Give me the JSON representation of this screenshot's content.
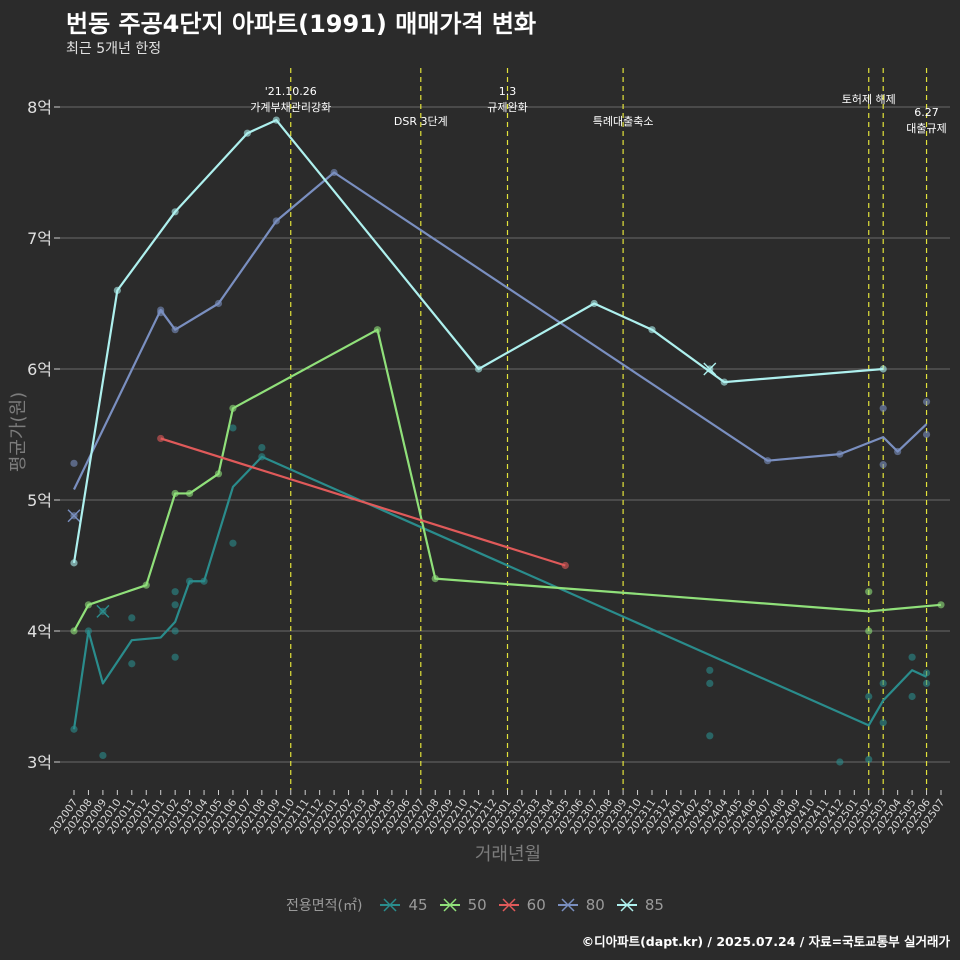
{
  "header": {
    "title": "번동 주공4단지 아파트(1991) 매매가격 변화",
    "subtitle": "최근 5개년 한정",
    "caption": "©디아파트(dapt.kr) / 2025.07.24 / 자료=국토교통부 실거래가"
  },
  "legend": {
    "title": "전용면적(㎡)",
    "items": [
      {
        "label": "45",
        "color": "#2a8c8c"
      },
      {
        "label": "50",
        "color": "#90e07a"
      },
      {
        "label": "60",
        "color": "#e05a5a"
      },
      {
        "label": "80",
        "color": "#7a8fc0"
      },
      {
        "label": "85",
        "color": "#aef0ee"
      }
    ]
  },
  "chart_data": {
    "type": "line",
    "title": "번동 주공4단지 아파트(1991) 매매가격 변화",
    "subtitle": "최근 5개년 한정",
    "xlabel": "거래년월",
    "ylabel": "평균가(원)",
    "ylim": [
      2.8,
      8.3
    ],
    "y_ticks": [
      3,
      4,
      5,
      6,
      7,
      8
    ],
    "y_tick_labels": [
      "3억",
      "4억",
      "5억",
      "6억",
      "7억",
      "8억"
    ],
    "categories": [
      "202007",
      "202008",
      "202009",
      "202010",
      "202011",
      "202012",
      "202101",
      "202102",
      "202103",
      "202104",
      "202105",
      "202106",
      "202107",
      "202108",
      "202109",
      "202110",
      "202111",
      "202112",
      "202201",
      "202202",
      "202203",
      "202204",
      "202205",
      "202206",
      "202207",
      "202208",
      "202209",
      "202210",
      "202211",
      "202212",
      "202301",
      "202302",
      "202303",
      "202304",
      "202305",
      "202306",
      "202307",
      "202308",
      "202309",
      "202310",
      "202311",
      "202312",
      "202401",
      "202402",
      "202403",
      "202404",
      "202405",
      "202406",
      "202407",
      "202408",
      "202409",
      "202410",
      "202411",
      "202412",
      "202501",
      "202502",
      "202503",
      "202504",
      "202505",
      "202506",
      "202507"
    ],
    "grid": true,
    "legend_position": "bottom",
    "series": [
      {
        "name": "45",
        "color": "#2a8c8c",
        "line": [
          [
            "202007",
            3.25
          ],
          [
            "202008",
            4.0
          ],
          [
            "202009",
            3.6
          ],
          [
            "202011",
            3.93
          ],
          [
            "202101",
            3.95
          ],
          [
            "202102",
            4.07
          ],
          [
            "202103",
            4.38
          ],
          [
            "202104",
            4.38
          ],
          [
            "202106",
            5.1
          ],
          [
            "202108",
            5.33
          ],
          [
            "202502",
            3.28
          ],
          [
            "202503",
            3.47
          ],
          [
            "202505",
            3.7
          ],
          [
            "202506",
            3.65
          ]
        ],
        "points": [
          [
            "202007",
            3.25
          ],
          [
            "202008",
            4.0
          ],
          [
            "202009",
            3.05
          ],
          [
            "202011",
            4.1
          ],
          [
            "202011",
            3.75
          ],
          [
            "202102",
            4.3
          ],
          [
            "202102",
            4.2
          ],
          [
            "202102",
            4.0
          ],
          [
            "202102",
            3.8
          ],
          [
            "202103",
            4.38
          ],
          [
            "202104",
            4.38
          ],
          [
            "202106",
            5.55
          ],
          [
            "202106",
            4.67
          ],
          [
            "202108",
            5.4
          ],
          [
            "202108",
            5.33
          ],
          [
            "202403",
            3.7
          ],
          [
            "202403",
            3.6
          ],
          [
            "202403",
            3.2
          ],
          [
            "202412",
            3.0
          ],
          [
            "202502",
            3.5
          ],
          [
            "202502",
            3.02
          ],
          [
            "202503",
            3.6
          ],
          [
            "202503",
            3.3
          ],
          [
            "202505",
            3.8
          ],
          [
            "202505",
            3.5
          ],
          [
            "202506",
            3.68
          ],
          [
            "202506",
            3.6
          ]
        ],
        "cancelled": [
          [
            "202009",
            4.15
          ]
        ]
      },
      {
        "name": "50",
        "color": "#90e07a",
        "line": [
          [
            "202007",
            4.0
          ],
          [
            "202008",
            4.2
          ],
          [
            "202012",
            4.35
          ],
          [
            "202102",
            5.05
          ],
          [
            "202103",
            5.05
          ],
          [
            "202105",
            5.2
          ],
          [
            "202106",
            5.7
          ],
          [
            "202204",
            6.3
          ],
          [
            "202208",
            4.4
          ],
          [
            "202502",
            4.15
          ],
          [
            "202507",
            4.2
          ]
        ],
        "points": [
          [
            "202007",
            4.0
          ],
          [
            "202008",
            4.2
          ],
          [
            "202012",
            4.35
          ],
          [
            "202102",
            5.05
          ],
          [
            "202103",
            5.05
          ],
          [
            "202105",
            5.2
          ],
          [
            "202106",
            5.7
          ],
          [
            "202204",
            6.3
          ],
          [
            "202208",
            4.4
          ],
          [
            "202502",
            4.3
          ],
          [
            "202502",
            4.0
          ],
          [
            "202507",
            4.2
          ]
        ],
        "cancelled": []
      },
      {
        "name": "60",
        "color": "#e05a5a",
        "line": [
          [
            "202101",
            5.47
          ],
          [
            "202305",
            4.5
          ]
        ],
        "points": [
          [
            "202101",
            5.47
          ],
          [
            "202305",
            4.5
          ]
        ],
        "cancelled": []
      },
      {
        "name": "80",
        "color": "#7a8fc0",
        "line": [
          [
            "202007",
            5.08
          ],
          [
            "202101",
            6.45
          ],
          [
            "202102",
            6.3
          ],
          [
            "202105",
            6.5
          ],
          [
            "202109",
            7.13
          ],
          [
            "202201",
            7.5
          ],
          [
            "202407",
            5.3
          ],
          [
            "202412",
            5.35
          ],
          [
            "202503",
            5.48
          ],
          [
            "202504",
            5.37
          ],
          [
            "202506",
            5.58
          ]
        ],
        "points": [
          [
            "202007",
            5.28
          ],
          [
            "202101",
            6.45
          ],
          [
            "202101",
            6.43
          ],
          [
            "202102",
            6.3
          ],
          [
            "202105",
            6.5
          ],
          [
            "202109",
            7.13
          ],
          [
            "202201",
            7.5
          ],
          [
            "202407",
            5.3
          ],
          [
            "202412",
            5.35
          ],
          [
            "202503",
            5.7
          ],
          [
            "202503",
            5.27
          ],
          [
            "202504",
            5.37
          ],
          [
            "202506",
            5.75
          ],
          [
            "202506",
            5.5
          ]
        ],
        "cancelled": [
          [
            "202007",
            4.88
          ]
        ]
      },
      {
        "name": "85",
        "color": "#aef0ee",
        "line": [
          [
            "202007",
            4.52
          ],
          [
            "202010",
            6.6
          ],
          [
            "202102",
            7.2
          ],
          [
            "202107",
            7.8
          ],
          [
            "202109",
            7.9
          ],
          [
            "202211",
            6.0
          ],
          [
            "202307",
            6.5
          ],
          [
            "202311",
            6.3
          ],
          [
            "202404",
            5.9
          ],
          [
            "202503",
            6.0
          ]
        ],
        "points": [
          [
            "202007",
            4.52
          ],
          [
            "202010",
            6.6
          ],
          [
            "202102",
            7.2
          ],
          [
            "202107",
            7.8
          ],
          [
            "202109",
            7.9
          ],
          [
            "202211",
            6.0
          ],
          [
            "202307",
            6.5
          ],
          [
            "202311",
            6.3
          ],
          [
            "202404",
            5.9
          ],
          [
            "202503",
            6.0
          ]
        ],
        "cancelled": [
          [
            "202403",
            6.0
          ]
        ]
      }
    ],
    "annotations": [
      {
        "x": "202110",
        "lines": [
          "'21.10.26",
          "가계부채관리강화"
        ],
        "pos": "top"
      },
      {
        "x": "202207",
        "lines": [
          "DSR 3단계"
        ],
        "pos": "low"
      },
      {
        "x": "202301",
        "lines": [
          "1.3",
          "규제완화"
        ],
        "pos": "top"
      },
      {
        "x": "202309",
        "lines": [
          "특례대출축소"
        ],
        "pos": "low"
      },
      {
        "x": "202502",
        "lines": [
          "토허제 해제"
        ],
        "pos": "mid"
      },
      {
        "x": "202503",
        "lines": [],
        "pos": "none"
      },
      {
        "x": "202506",
        "lines": [
          "6.27",
          "대출규제"
        ],
        "pos": "right"
      }
    ]
  }
}
